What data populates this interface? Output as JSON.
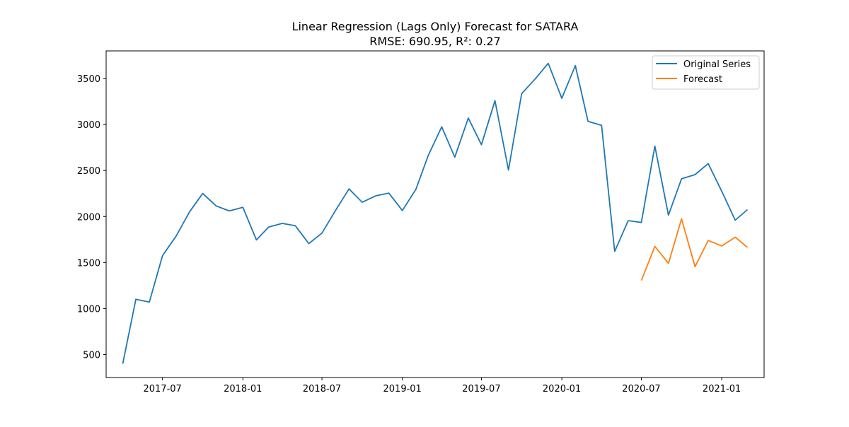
{
  "chart_data": {
    "type": "line",
    "title": "Linear Regression (Lags Only) Forecast for SATARA",
    "subtitle": "RMSE: 690.95, R²: 0.27",
    "xlabel": "",
    "ylabel": "",
    "x_axis": {
      "type": "date",
      "range": [
        "2017-02-22",
        "2021-04-08"
      ],
      "tick_labels": [
        "2017-07",
        "2018-01",
        "2018-07",
        "2019-01",
        "2019-07",
        "2020-01",
        "2020-07",
        "2021-01"
      ],
      "tick_dates": [
        "2017-07-01",
        "2018-01-01",
        "2018-07-01",
        "2019-01-01",
        "2019-07-01",
        "2020-01-01",
        "2020-07-01",
        "2021-01-01"
      ]
    },
    "ylim": [
      250,
      3800
    ],
    "y_ticks": [
      500,
      1000,
      1500,
      2000,
      2500,
      3000,
      3500
    ],
    "grid": false,
    "legend_position": "top-right",
    "series": [
      {
        "name": "Original Series",
        "color": "#1f77b4",
        "x": [
          "2017-04-01",
          "2017-05-01",
          "2017-06-01",
          "2017-07-01",
          "2017-08-01",
          "2017-09-01",
          "2017-10-01",
          "2017-11-01",
          "2017-12-01",
          "2018-01-01",
          "2018-02-01",
          "2018-03-01",
          "2018-04-01",
          "2018-05-01",
          "2018-06-01",
          "2018-07-01",
          "2018-08-01",
          "2018-09-01",
          "2018-10-01",
          "2018-11-01",
          "2018-12-01",
          "2019-01-01",
          "2019-02-01",
          "2019-03-01",
          "2019-04-01",
          "2019-05-01",
          "2019-06-01",
          "2019-07-01",
          "2019-08-01",
          "2019-09-01",
          "2019-10-01",
          "2019-11-01",
          "2019-12-01",
          "2020-01-01",
          "2020-02-01",
          "2020-03-01",
          "2020-04-01",
          "2020-05-01",
          "2020-06-01",
          "2020-07-01",
          "2020-08-01",
          "2020-09-01",
          "2020-10-01",
          "2020-11-01",
          "2020-12-01",
          "2021-01-01",
          "2021-02-01",
          "2021-03-01"
        ],
        "values": [
          400,
          1100,
          1070,
          1575,
          1785,
          2050,
          2250,
          2115,
          2060,
          2100,
          1745,
          1885,
          1925,
          1900,
          1705,
          1820,
          2065,
          2300,
          2155,
          2225,
          2255,
          2065,
          2295,
          2660,
          2975,
          2645,
          3070,
          2780,
          3260,
          2505,
          3335,
          3495,
          3665,
          3285,
          3640,
          3035,
          2990,
          1620,
          1955,
          1935,
          2765,
          2015,
          2410,
          2455,
          2575,
          2275,
          1960,
          2075
        ]
      },
      {
        "name": "Forecast",
        "color": "#ff7f0e",
        "x": [
          "2020-07-01",
          "2020-08-01",
          "2020-09-01",
          "2020-10-01",
          "2020-11-01",
          "2020-12-01",
          "2021-01-01",
          "2021-02-01",
          "2021-03-01"
        ],
        "values": [
          1305,
          1675,
          1490,
          1975,
          1455,
          1740,
          1680,
          1775,
          1665
        ]
      }
    ]
  }
}
